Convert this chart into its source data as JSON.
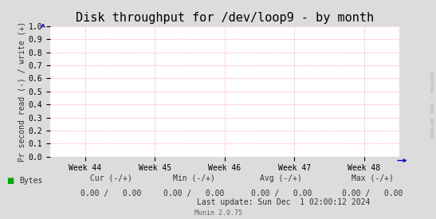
{
  "title": "Disk throughput for /dev/loop9 - by month",
  "ylabel": "Pr second read (-) / write (+)",
  "xlabel_ticks": [
    "Week 44",
    "Week 45",
    "Week 46",
    "Week 47",
    "Week 48"
  ],
  "ylim": [
    0.0,
    1.0
  ],
  "yticks": [
    0.0,
    0.1,
    0.2,
    0.3,
    0.4,
    0.5,
    0.6,
    0.7,
    0.8,
    0.9,
    1.0
  ],
  "bg_color": "#dcdcdc",
  "plot_bg_color": "#ffffff",
  "grid_color": "#ff9999",
  "arrow_color": "#0000cc",
  "watermark_text": "RRDTOOL / TOBI OETIKER",
  "legend_label": "Bytes",
  "legend_color": "#00aa00",
  "cur_label": "Cur (-/+)",
  "min_label": "Min (-/+)",
  "avg_label": "Avg (-/+)",
  "max_label": "Max (-/+)",
  "cur_val": "0.00 /   0.00",
  "min_val": "0.00 /   0.00",
  "avg_val": "0.00 /   0.00",
  "max_val": "0.00 /   0.00",
  "last_update": "Last update: Sun Dec  1 02:00:12 2024",
  "munin_text": "Munin 2.0.75",
  "title_fontsize": 11,
  "axis_fontsize": 7,
  "label_fontsize": 7
}
